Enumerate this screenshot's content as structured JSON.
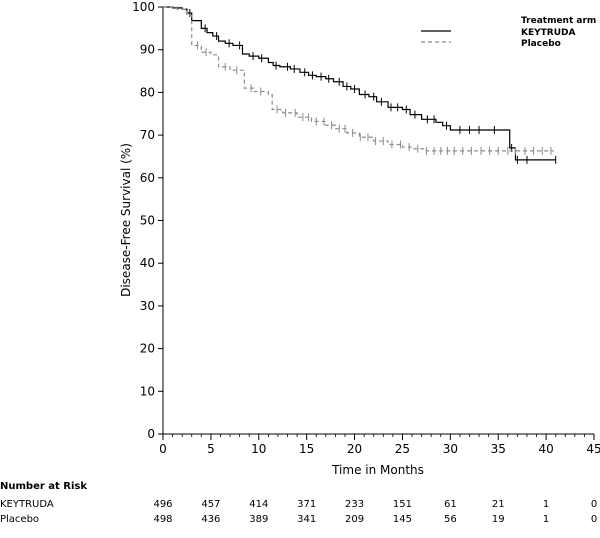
{
  "chart_data": {
    "type": "line",
    "xlabel": "Time in Months",
    "ylabel": "Disease-Free Survival (%)",
    "xlim": [
      0,
      45
    ],
    "ylim": [
      0,
      100
    ],
    "x_ticks": [
      0,
      5,
      10,
      15,
      20,
      25,
      30,
      35,
      40,
      45
    ],
    "y_ticks": [
      0,
      10,
      20,
      30,
      40,
      50,
      60,
      70,
      80,
      90,
      100
    ],
    "grid": false,
    "legend": {
      "title": "Treatment arm",
      "position": "top-right",
      "entries": [
        "KEYTRUDA",
        "Placebo"
      ]
    },
    "series": [
      {
        "name": "KEYTRUDA",
        "color": "#000000",
        "style": "solid",
        "points": [
          [
            0,
            100
          ],
          [
            1,
            99.8
          ],
          [
            2,
            99.5
          ],
          [
            2.5,
            98.6
          ],
          [
            3,
            96.8
          ],
          [
            4,
            95
          ],
          [
            4.6,
            94
          ],
          [
            5.2,
            93.2
          ],
          [
            5.8,
            92
          ],
          [
            6.5,
            91.5
          ],
          [
            7.3,
            91
          ],
          [
            8.3,
            89
          ],
          [
            9,
            88.5
          ],
          [
            10,
            88
          ],
          [
            11,
            87
          ],
          [
            11.5,
            86.3
          ],
          [
            12.2,
            86
          ],
          [
            13.3,
            85.5
          ],
          [
            14.3,
            84.7
          ],
          [
            15.2,
            84
          ],
          [
            16,
            83.7
          ],
          [
            17,
            83.2
          ],
          [
            17.8,
            82.5
          ],
          [
            18.8,
            81.4
          ],
          [
            19.6,
            80.8
          ],
          [
            20.5,
            79.5
          ],
          [
            21.5,
            79
          ],
          [
            22.3,
            77.8
          ],
          [
            23.5,
            76.5
          ],
          [
            25,
            76
          ],
          [
            25.8,
            74.8
          ],
          [
            27,
            73.7
          ],
          [
            28.5,
            73
          ],
          [
            29.2,
            72.2
          ],
          [
            30,
            71.2
          ],
          [
            33.3,
            71.2
          ],
          [
            35.5,
            71.2
          ],
          [
            36.2,
            67
          ],
          [
            36.8,
            64.2
          ],
          [
            41,
            64.2
          ]
        ],
        "censor_x": [
          2.8,
          4.4,
          5.6,
          6.9,
          8,
          9.4,
          10.3,
          11.8,
          13,
          13.7,
          14.8,
          15.6,
          16.5,
          17.3,
          18.4,
          19.2,
          20,
          21.1,
          22,
          22.8,
          23.8,
          24.5,
          25.4,
          26.3,
          27.6,
          28.3,
          29.6,
          31,
          32,
          33,
          34.6,
          36.4,
          37,
          38,
          41
        ]
      },
      {
        "name": "Placebo",
        "color": "#8c8c8c",
        "style": "dashed",
        "points": [
          [
            0,
            100
          ],
          [
            1.5,
            99.5
          ],
          [
            2.5,
            98
          ],
          [
            3,
            91
          ],
          [
            4,
            89.4
          ],
          [
            5,
            88.8
          ],
          [
            5.8,
            86
          ],
          [
            7,
            85.2
          ],
          [
            8.5,
            81
          ],
          [
            9.5,
            80.2
          ],
          [
            11,
            79.5
          ],
          [
            11.4,
            76
          ],
          [
            12.5,
            75.2
          ],
          [
            14,
            74.2
          ],
          [
            15.5,
            73.2
          ],
          [
            17,
            72.3
          ],
          [
            18,
            71.5
          ],
          [
            19.2,
            70.5
          ],
          [
            20.5,
            69.5
          ],
          [
            22,
            68.6
          ],
          [
            23.5,
            67.8
          ],
          [
            25,
            67.2
          ],
          [
            26,
            66.8
          ],
          [
            27.5,
            66.3
          ],
          [
            40.8,
            66.3
          ]
        ],
        "censor_x": [
          3.6,
          4.5,
          6.5,
          7.7,
          9.2,
          10.2,
          11.9,
          12.8,
          13.8,
          14.6,
          15.2,
          16,
          16.8,
          17.6,
          18.4,
          19,
          19.8,
          20.6,
          21.4,
          22.2,
          23,
          23.9,
          24.8,
          25.7,
          26.6,
          27.5,
          28.3,
          29,
          29.7,
          30.4,
          31.3,
          32.2,
          33.2,
          34.1,
          35,
          36,
          36.8,
          37.8,
          38.7,
          39.6,
          40.5
        ]
      }
    ]
  },
  "risk_table": {
    "header": "Number at Risk",
    "rows": [
      {
        "label": "KEYTRUDA",
        "values": [
          "496",
          "457",
          "414",
          "371",
          "233",
          "151",
          "61",
          "21",
          "1",
          "0"
        ]
      },
      {
        "label": "Placebo",
        "values": [
          "498",
          "436",
          "389",
          "341",
          "209",
          "145",
          "56",
          "19",
          "1",
          "0"
        ]
      }
    ]
  }
}
